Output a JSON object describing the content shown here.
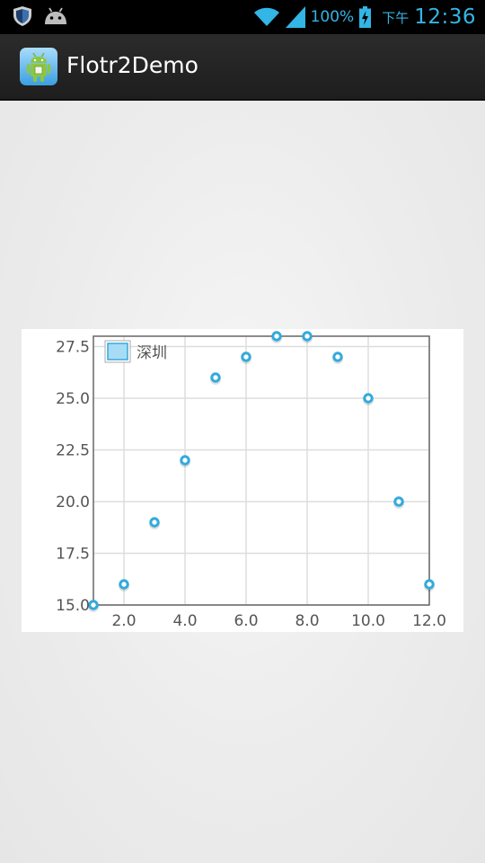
{
  "status_bar": {
    "battery_percent": "100%",
    "ampm": "下午",
    "time": "12:36",
    "icons": [
      "shield-icon",
      "android-robot-icon",
      "wifi-icon",
      "signal-icon",
      "battery-charging-icon"
    ],
    "accent_color": "#33b5e5"
  },
  "action_bar": {
    "title": "Flotr2Demo",
    "icon": "android-app-icon"
  },
  "chart_data": {
    "type": "scatter",
    "x": [
      1,
      2,
      3,
      4,
      5,
      6,
      7,
      8,
      9,
      10,
      11,
      12
    ],
    "series": [
      {
        "name": "深圳",
        "values": [
          15,
          16,
          19,
          22,
          26,
          27,
          28,
          28,
          27,
          25,
          20,
          16
        ],
        "color": "#33aadd"
      }
    ],
    "xlim": [
      1,
      12
    ],
    "ylim": [
      15,
      28
    ],
    "x_ticks": [
      2.0,
      4.0,
      6.0,
      8.0,
      10.0,
      12.0
    ],
    "y_ticks": [
      15.0,
      17.5,
      20.0,
      22.5,
      25.0,
      27.5
    ],
    "x_tick_labels": [
      "2.0",
      "4.0",
      "6.0",
      "8.0",
      "10.0",
      "12.0"
    ],
    "y_tick_labels": [
      "15.0",
      "17.5",
      "20.0",
      "22.5",
      "25.0",
      "27.5"
    ],
    "grid": true,
    "legend_position": "top-left"
  }
}
